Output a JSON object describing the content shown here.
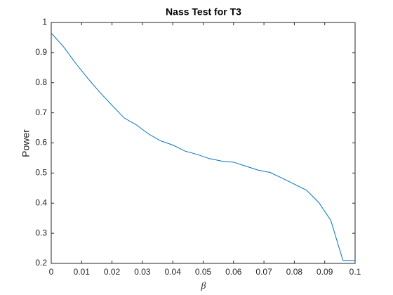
{
  "chart_data": {
    "type": "line",
    "title": "Nass Test for T3",
    "x_label": "β",
    "y_label": "Power",
    "x": [
      0,
      0.004,
      0.008,
      0.012,
      0.016,
      0.02,
      0.024,
      0.028,
      0.032,
      0.036,
      0.04,
      0.044,
      0.048,
      0.052,
      0.056,
      0.06,
      0.064,
      0.068,
      0.072,
      0.076,
      0.08,
      0.084,
      0.088,
      0.092,
      0.096,
      0.1
    ],
    "series": [
      {
        "name": "Power",
        "color": "#0072bd",
        "values": [
          0.965,
          0.92,
          0.865,
          0.815,
          0.768,
          0.725,
          0.683,
          0.66,
          0.63,
          0.607,
          0.593,
          0.573,
          0.562,
          0.548,
          0.54,
          0.536,
          0.523,
          0.51,
          0.502,
          0.483,
          0.463,
          0.443,
          0.403,
          0.343,
          0.21,
          0.21
        ]
      }
    ],
    "xlim": [
      0,
      0.1
    ],
    "xticks": [
      0,
      0.01,
      0.02,
      0.03,
      0.04,
      0.05,
      0.06,
      0.07,
      0.08,
      0.09,
      0.1
    ],
    "ylim": [
      0.2,
      1
    ],
    "yticks": [
      0.2,
      0.3,
      0.4,
      0.5,
      0.6,
      0.7,
      0.8,
      0.9,
      1
    ]
  }
}
